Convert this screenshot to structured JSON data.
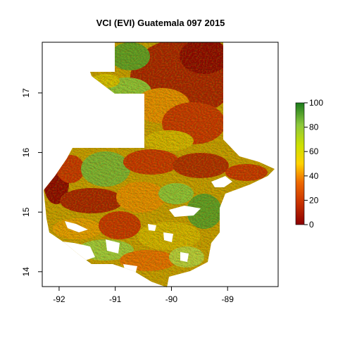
{
  "title": "VCI (EVI) Guatemala 097 2015",
  "map": {
    "x_ticks": [
      "-92",
      "-91",
      "-90",
      "-89"
    ],
    "y_ticks": [
      "14",
      "15",
      "16",
      "17"
    ],
    "x_range": [
      -92.3,
      -88.1
    ],
    "y_range": [
      13.75,
      17.85
    ],
    "x_tick_values": [
      -92,
      -91,
      -90,
      -89
    ],
    "y_tick_values": [
      14,
      15,
      16,
      17
    ]
  },
  "legend": {
    "labels": [
      "0",
      "20",
      "40",
      "60",
      "80",
      "100"
    ],
    "min": 0,
    "max": 100,
    "colors": [
      "#8b0000",
      "#c83200",
      "#ee6a00",
      "#ffd200",
      "#cde000",
      "#8cc83c",
      "#1a7a1a"
    ]
  }
}
